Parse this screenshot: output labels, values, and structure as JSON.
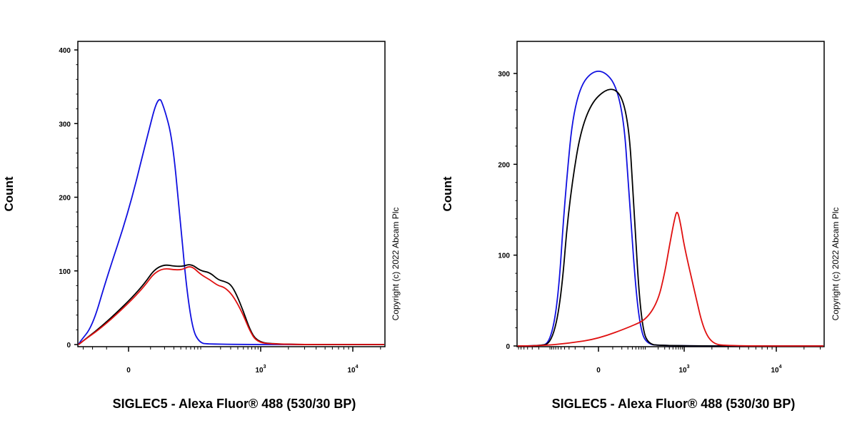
{
  "chart_data": [
    {
      "type": "line",
      "ylabel": "Count",
      "xlabel": "SIGLEC5 - Alexa Fluor® 488 (530/30 BP)",
      "x_scale": "biexponential",
      "ylim": [
        0,
        410
      ],
      "y_ticks": [
        {
          "value": 0,
          "label": "0"
        },
        {
          "value": 100,
          "label": "100"
        },
        {
          "value": 200,
          "label": "200"
        },
        {
          "value": 300,
          "label": "300"
        },
        {
          "value": 400,
          "label": "400"
        }
      ],
      "x_ticks": [
        {
          "value": 0,
          "base": "0",
          "sup": ""
        },
        {
          "value": 1000,
          "base": "10",
          "sup": "3"
        },
        {
          "value": 10000,
          "base": "10",
          "sup": "4"
        }
      ],
      "copyright": "Copyright (c) 2022 Abcam Plc",
      "series": [
        {
          "color": "#1010e0",
          "points": [
            [
              -60,
              0
            ],
            [
              -35,
              3
            ],
            [
              -20,
              25
            ],
            [
              -10,
              90
            ],
            [
              0,
              180
            ],
            [
              8,
              280
            ],
            [
              15,
              340
            ],
            [
              20,
              320
            ],
            [
              28,
              280
            ],
            [
              38,
              180
            ],
            [
              50,
              80
            ],
            [
              65,
              20
            ],
            [
              85,
              3
            ],
            [
              120,
              0
            ]
          ]
        },
        {
          "color": "#000000",
          "points": [
            [
              -60,
              0
            ],
            [
              -30,
              5
            ],
            [
              -10,
              30
            ],
            [
              5,
              75
            ],
            [
              15,
              110
            ],
            [
              40,
              105
            ],
            [
              60,
              110
            ],
            [
              90,
              100
            ],
            [
              130,
              98
            ],
            [
              180,
              88
            ],
            [
              230,
              86
            ],
            [
              300,
              82
            ],
            [
              380,
              68
            ],
            [
              500,
              45
            ],
            [
              650,
              20
            ],
            [
              850,
              5
            ],
            [
              1300,
              0
            ]
          ]
        },
        {
          "color": "#e01010",
          "points": [
            [
              -60,
              0
            ],
            [
              -30,
              5
            ],
            [
              -10,
              28
            ],
            [
              5,
              72
            ],
            [
              15,
              105
            ],
            [
              40,
              100
            ],
            [
              60,
              108
            ],
            [
              90,
              95
            ],
            [
              130,
              88
            ],
            [
              180,
              80
            ],
            [
              230,
              78
            ],
            [
              300,
              70
            ],
            [
              380,
              58
            ],
            [
              500,
              40
            ],
            [
              650,
              18
            ],
            [
              850,
              4
            ],
            [
              1300,
              0
            ]
          ]
        }
      ]
    },
    {
      "type": "line",
      "ylabel": "Count",
      "xlabel": "SIGLEC5 - Alexa Fluor® 488 (530/30 BP)",
      "x_scale": "biexponential",
      "ylim": [
        0,
        335
      ],
      "y_ticks": [
        {
          "value": 0,
          "label": "0"
        },
        {
          "value": 100,
          "label": "100"
        },
        {
          "value": 200,
          "label": "200"
        },
        {
          "value": 300,
          "label": "300"
        }
      ],
      "x_ticks": [
        {
          "value": 0,
          "base": "0",
          "sup": ""
        },
        {
          "value": 1000,
          "base": "10",
          "sup": "3"
        },
        {
          "value": 10000,
          "base": "10",
          "sup": "4"
        }
      ],
      "copyright": "Copyright (c) 2022 Abcam Plc",
      "series": [
        {
          "color": "#1010e0",
          "points": [
            [
              -200,
              0
            ],
            [
              -100,
              3
            ],
            [
              -60,
              50
            ],
            [
              -40,
              160
            ],
            [
              -20,
              280
            ],
            [
              0,
              310
            ],
            [
              20,
              280
            ],
            [
              35,
              150
            ],
            [
              50,
              60
            ],
            [
              70,
              15
            ],
            [
              100,
              3
            ],
            [
              200,
              0
            ]
          ]
        },
        {
          "color": "#000000",
          "points": [
            [
              -200,
              0
            ],
            [
              -90,
              3
            ],
            [
              -50,
              50
            ],
            [
              -30,
              160
            ],
            [
              -10,
              260
            ],
            [
              10,
              290
            ],
            [
              30,
              260
            ],
            [
              45,
              150
            ],
            [
              60,
              60
            ],
            [
              80,
              15
            ],
            [
              110,
              3
            ],
            [
              200,
              0
            ]
          ]
        },
        {
          "color": "#e01010",
          "points": [
            [
              -200,
              0
            ],
            [
              -30,
              3
            ],
            [
              0,
              8
            ],
            [
              40,
              22
            ],
            [
              100,
              30
            ],
            [
              200,
              50
            ],
            [
              300,
              80
            ],
            [
              400,
              110
            ],
            [
              550,
              140
            ],
            [
              650,
              150
            ],
            [
              800,
              135
            ],
            [
              1000,
              110
            ],
            [
              1300,
              60
            ],
            [
              1600,
              20
            ],
            [
              2000,
              3
            ],
            [
              2800,
              0
            ]
          ]
        }
      ]
    }
  ]
}
